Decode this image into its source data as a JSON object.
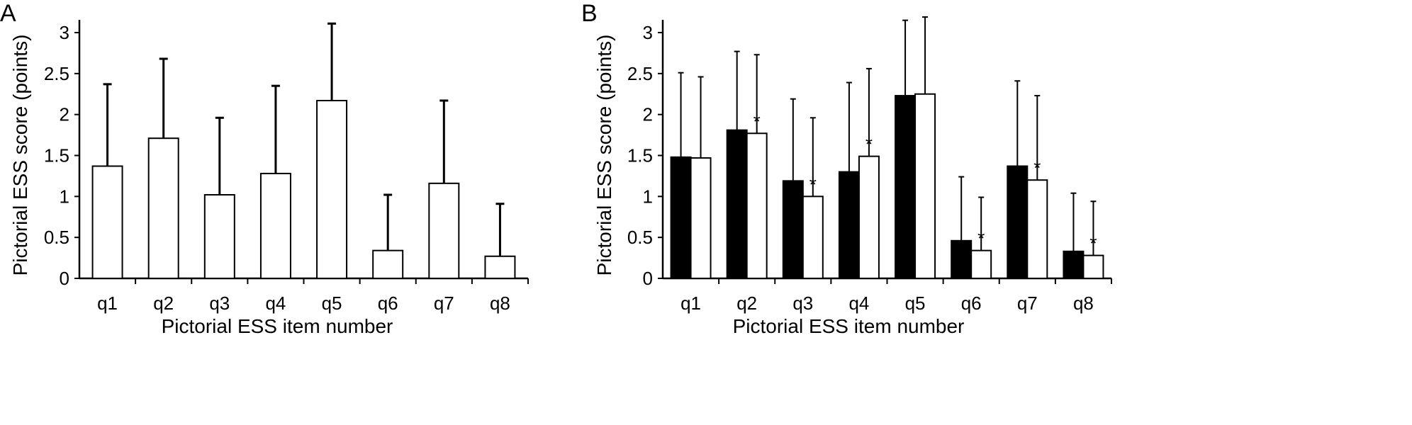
{
  "chart_data": [
    {
      "panel": "A",
      "type": "bar",
      "categories": [
        "q1",
        "q2",
        "q3",
        "q4",
        "q5",
        "q6",
        "q7",
        "q8"
      ],
      "series": [
        {
          "values": [
            1.37,
            1.71,
            1.02,
            1.28,
            2.17,
            0.34,
            1.16,
            0.27
          ],
          "error_upper": [
            2.37,
            2.68,
            1.96,
            2.35,
            3.11,
            1.02,
            2.17,
            0.91
          ],
          "fill": "#ffffff"
        }
      ],
      "xlabel": "Pictorial ESS item number",
      "ylabel": "Pictorial ESS score (points)",
      "ylim": [
        0,
        3
      ],
      "yticks": [
        "0",
        "0.5",
        "1",
        "1.5",
        "2",
        "2.5",
        "3"
      ],
      "grid": false
    },
    {
      "panel": "B",
      "type": "bar",
      "categories": [
        "q1",
        "q2",
        "q3",
        "q4",
        "q5",
        "q6",
        "q7",
        "q8"
      ],
      "series": [
        {
          "values": [
            1.48,
            1.81,
            1.19,
            1.3,
            2.23,
            0.46,
            1.37,
            0.33
          ],
          "error_upper": [
            2.51,
            2.77,
            2.19,
            2.39,
            3.15,
            1.24,
            2.41,
            1.04
          ],
          "fill": "#000000"
        },
        {
          "values": [
            1.47,
            1.77,
            1.0,
            1.49,
            2.25,
            0.34,
            1.2,
            0.28
          ],
          "error_upper": [
            2.46,
            2.73,
            1.96,
            2.56,
            3.19,
            0.99,
            2.23,
            0.94
          ],
          "fill": "#ffffff"
        }
      ],
      "significance": [
        "",
        "*",
        "*",
        "*",
        "",
        "*",
        "*",
        "*"
      ],
      "xlabel": "Pictorial ESS item number",
      "ylabel": "Pictorial ESS score (points)",
      "ylim": [
        0,
        3
      ],
      "yticks": [
        "0",
        "0.5",
        "1",
        "1.5",
        "2",
        "2.5",
        "3"
      ],
      "grid": false
    }
  ]
}
